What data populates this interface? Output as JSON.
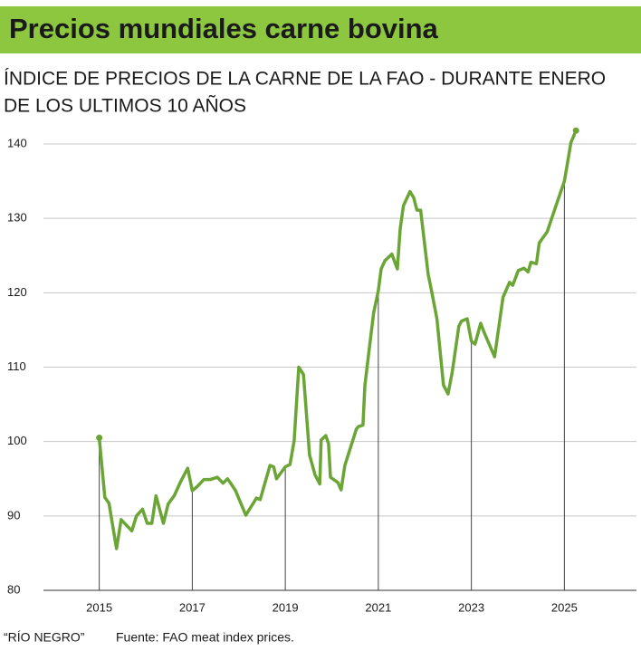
{
  "chart_data": {
    "type": "line",
    "title": "Precios mundiales carne bovina",
    "subtitle": [
      "ÍNDICE DE PRECIOS DE LA CARNE DE LA FAO - DURANTE ENERO",
      "DE LOS ULTIMOS 10 AÑOS"
    ],
    "source": [
      "“RÍO NEGRO”",
      "Fuente: FAO meat index prices."
    ],
    "color": "#6aa535",
    "xlim": [
      2013.8,
      2026.55
    ],
    "xticks": [
      2015,
      2017,
      2019,
      2021,
      2023,
      2025
    ],
    "ylim": [
      80,
      140
    ],
    "yticks": [
      80,
      90,
      100,
      110,
      120,
      130,
      140
    ],
    "grid": true,
    "x": [
      2015.0,
      2015.12,
      2015.21,
      2015.37,
      2015.47,
      2015.7,
      2015.8,
      2015.93,
      2016.03,
      2016.13,
      2016.22,
      2016.38,
      2016.48,
      2016.61,
      2016.75,
      2016.9,
      2017.0,
      2017.1,
      2017.25,
      2017.39,
      2017.54,
      2017.66,
      2017.76,
      2017.93,
      2018.01,
      2018.15,
      2018.38,
      2018.46,
      2018.67,
      2018.75,
      2018.81,
      2019.0,
      2019.1,
      2019.19,
      2019.29,
      2019.39,
      2019.52,
      2019.64,
      2019.74,
      2019.77,
      2019.87,
      2019.93,
      2019.97,
      2020.13,
      2020.2,
      2020.28,
      2020.53,
      2020.57,
      2020.67,
      2020.71,
      2020.79,
      2020.9,
      2021.0,
      2021.06,
      2021.14,
      2021.29,
      2021.41,
      2021.47,
      2021.54,
      2021.68,
      2021.76,
      2021.83,
      2021.91,
      2022.07,
      2022.14,
      2022.26,
      2022.4,
      2022.5,
      2022.59,
      2022.73,
      2022.79,
      2022.91,
      2023.0,
      2023.08,
      2023.2,
      2023.28,
      2023.5,
      2023.68,
      2023.82,
      2023.89,
      2024.01,
      2024.13,
      2024.22,
      2024.28,
      2024.4,
      2024.46,
      2024.63,
      2024.77,
      2024.94,
      2025.0,
      2025.14,
      2025.25
    ],
    "values": [
      100.5,
      92.5,
      91.7,
      85.6,
      89.5,
      88.0,
      90.0,
      90.9,
      89.0,
      89.0,
      92.7,
      89.0,
      91.6,
      92.7,
      94.6,
      96.4,
      93.4,
      93.9,
      94.9,
      94.9,
      95.2,
      94.4,
      95.0,
      93.4,
      92.2,
      90.1,
      92.4,
      92.2,
      96.8,
      96.6,
      95.0,
      96.6,
      96.9,
      100.1,
      110.0,
      109.0,
      98.2,
      95.5,
      94.3,
      100.2,
      100.8,
      99.7,
      95.2,
      94.5,
      93.5,
      96.8,
      101.7,
      102.0,
      102.2,
      107.5,
      111.7,
      117.3,
      120.3,
      123.2,
      124.3,
      125.2,
      123.2,
      128.6,
      131.7,
      133.6,
      132.8,
      131.1,
      131.1,
      122.5,
      120.4,
      116.5,
      107.6,
      106.4,
      109.4,
      115.5,
      116.2,
      116.5,
      113.5,
      113.1,
      115.9,
      114.6,
      111.4,
      119.4,
      121.4,
      121.0,
      123.0,
      123.3,
      122.8,
      124.1,
      123.9,
      126.7,
      128.2,
      130.8,
      133.9,
      135.0,
      140.2,
      141.8
    ]
  }
}
